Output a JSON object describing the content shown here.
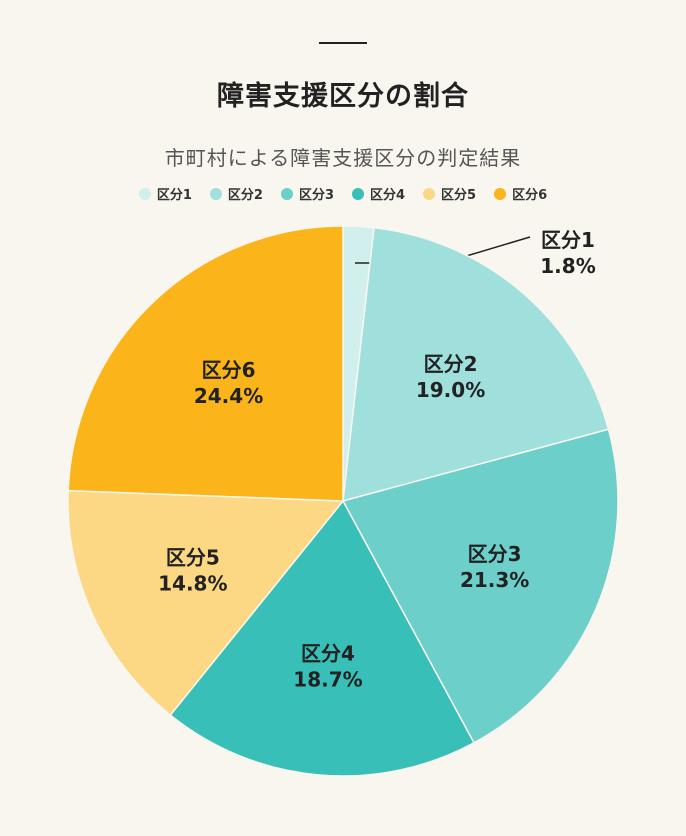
{
  "title": "障害支援区分の割合",
  "subtitle": "市町村による障害支援区分の判定結果",
  "chart_data": {
    "type": "pie",
    "title": "障害支援区分の割合",
    "subtitle": "市町村による障害支援区分の判定結果",
    "legend_position": "top",
    "start_angle": "12 o'clock, clockwise",
    "slices": [
      {
        "label": "区分1",
        "value": 1.8,
        "display": "1.8%",
        "color": "#d1efec"
      },
      {
        "label": "区分2",
        "value": 19.0,
        "display": "19.0%",
        "color": "#9fdfdc"
      },
      {
        "label": "区分3",
        "value": 21.3,
        "display": "21.3%",
        "color": "#6dcfca"
      },
      {
        "label": "区分4",
        "value": 18.7,
        "display": "18.7%",
        "color": "#38bfb8"
      },
      {
        "label": "区分5",
        "value": 14.8,
        "display": "14.8%",
        "color": "#fcd784"
      },
      {
        "label": "区分6",
        "value": 24.4,
        "display": "24.4%",
        "color": "#fbb41a"
      }
    ]
  }
}
